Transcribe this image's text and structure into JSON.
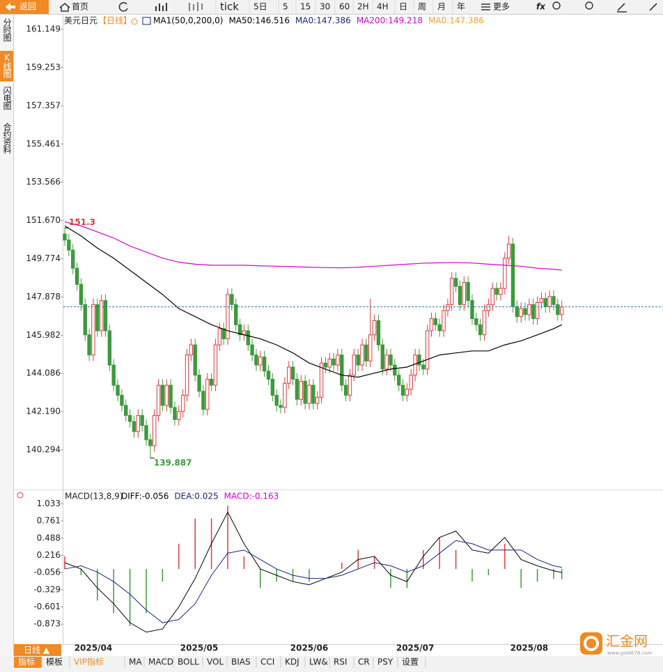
{
  "toolbar": {
    "back": "返回",
    "home": "首页",
    "items": [
      "tick",
      "5日",
      "5",
      "15",
      "30",
      "60",
      "2H",
      "4H",
      "日",
      "周",
      "月",
      "年"
    ],
    "more": "更多",
    "fx": "fx"
  },
  "side_tabs": [
    "分时图",
    "K线图",
    "闪电图",
    "合约资料"
  ],
  "chart_data": {
    "type": "candlestick",
    "title": "美元日元",
    "period": "【日线】",
    "legend": [
      {
        "text": "MA1(50,0,200,0)",
        "color": "#000000"
      },
      {
        "text": "MA50:146.516",
        "color": "#000000"
      },
      {
        "text": "MA0:147.386",
        "color": "#1a237e"
      },
      {
        "text": "MA200:149.218",
        "color": "#d400d4"
      },
      {
        "text": "MA0:147.386",
        "color": "#f0a030"
      }
    ],
    "up_color": "#e0393e",
    "down_color": "#3c9a3c",
    "candles": [
      [
        151.0,
        151.3,
        150.4,
        150.7
      ],
      [
        150.7,
        151.0,
        149.9,
        150.2
      ],
      [
        150.2,
        150.5,
        149.0,
        149.3
      ],
      [
        149.3,
        149.6,
        148.2,
        148.5
      ],
      [
        148.5,
        148.8,
        147.2,
        147.5
      ],
      [
        147.5,
        147.8,
        145.7,
        146.0
      ],
      [
        146.0,
        146.3,
        144.7,
        145.0
      ],
      [
        145.0,
        147.8,
        144.7,
        147.5
      ],
      [
        147.5,
        147.8,
        145.9,
        146.2
      ],
      [
        146.2,
        148.0,
        145.9,
        147.7
      ],
      [
        147.7,
        148.0,
        145.9,
        146.2
      ],
      [
        146.2,
        146.5,
        144.2,
        144.5
      ],
      [
        144.5,
        144.8,
        143.2,
        143.5
      ],
      [
        143.5,
        143.8,
        142.7,
        143.0
      ],
      [
        143.0,
        143.3,
        142.2,
        142.5
      ],
      [
        142.5,
        142.8,
        141.7,
        142.0
      ],
      [
        142.0,
        142.3,
        141.4,
        141.7
      ],
      [
        141.7,
        142.0,
        140.9,
        141.2
      ],
      [
        141.2,
        142.3,
        140.9,
        142.0
      ],
      [
        142.0,
        142.3,
        141.2,
        141.5
      ],
      [
        141.5,
        141.8,
        140.5,
        140.8
      ],
      [
        140.8,
        141.1,
        139.887,
        140.5
      ],
      [
        140.5,
        142.3,
        140.2,
        142.0
      ],
      [
        142.0,
        143.8,
        141.7,
        143.5
      ],
      [
        143.5,
        143.8,
        142.2,
        142.5
      ],
      [
        142.5,
        143.8,
        142.2,
        143.5
      ],
      [
        143.5,
        143.8,
        142.1,
        142.4
      ],
      [
        142.4,
        142.7,
        141.5,
        141.8
      ],
      [
        141.8,
        142.5,
        141.5,
        142.2
      ],
      [
        142.2,
        143.3,
        141.9,
        143.0
      ],
      [
        143.0,
        145.3,
        142.7,
        145.0
      ],
      [
        145.0,
        145.8,
        144.7,
        145.5
      ],
      [
        145.5,
        145.8,
        143.7,
        144.0
      ],
      [
        144.0,
        144.3,
        142.9,
        143.2
      ],
      [
        143.2,
        143.5,
        142.0,
        142.3
      ],
      [
        142.3,
        144.1,
        142.0,
        143.8
      ],
      [
        143.8,
        144.1,
        143.2,
        143.5
      ],
      [
        143.5,
        145.8,
        143.2,
        145.5
      ],
      [
        145.5,
        146.6,
        145.2,
        146.3
      ],
      [
        146.3,
        146.6,
        145.5,
        145.8
      ],
      [
        145.8,
        148.3,
        145.5,
        148.0
      ],
      [
        148.0,
        148.3,
        147.2,
        147.5
      ],
      [
        147.5,
        147.8,
        146.2,
        146.5
      ],
      [
        146.5,
        146.8,
        145.7,
        146.0
      ],
      [
        146.0,
        146.5,
        145.7,
        146.2
      ],
      [
        146.2,
        146.5,
        145.2,
        145.5
      ],
      [
        145.5,
        145.8,
        144.7,
        145.0
      ],
      [
        145.0,
        145.3,
        144.2,
        144.5
      ],
      [
        144.5,
        145.2,
        144.2,
        144.9
      ],
      [
        144.9,
        145.2,
        143.9,
        144.2
      ],
      [
        144.2,
        144.5,
        143.5,
        143.8
      ],
      [
        143.8,
        144.1,
        142.7,
        143.0
      ],
      [
        143.0,
        143.3,
        142.2,
        142.5
      ],
      [
        142.5,
        142.8,
        142.1,
        142.4
      ],
      [
        142.4,
        143.9,
        142.1,
        143.6
      ],
      [
        143.6,
        144.7,
        143.3,
        144.4
      ],
      [
        144.4,
        144.7,
        143.5,
        143.8
      ],
      [
        143.8,
        144.1,
        142.5,
        142.8
      ],
      [
        142.8,
        144.0,
        142.5,
        143.7
      ],
      [
        143.7,
        144.0,
        142.3,
        142.6
      ],
      [
        142.6,
        143.8,
        142.3,
        143.5
      ],
      [
        143.5,
        143.8,
        142.3,
        142.6
      ],
      [
        142.6,
        143.2,
        142.3,
        142.9
      ],
      [
        142.9,
        144.9,
        142.6,
        144.6
      ],
      [
        144.6,
        144.9,
        144.1,
        144.4
      ],
      [
        144.4,
        145.1,
        144.1,
        144.8
      ],
      [
        144.8,
        145.1,
        144.2,
        144.5
      ],
      [
        144.5,
        145.3,
        144.2,
        145.0
      ],
      [
        145.0,
        145.3,
        143.2,
        143.5
      ],
      [
        143.5,
        143.8,
        142.7,
        143.0
      ],
      [
        143.0,
        144.3,
        142.7,
        144.0
      ],
      [
        144.0,
        145.3,
        143.7,
        145.0
      ],
      [
        145.0,
        145.3,
        144.2,
        144.5
      ],
      [
        144.5,
        145.8,
        144.2,
        145.5
      ],
      [
        145.5,
        145.8,
        144.4,
        144.7
      ],
      [
        144.7,
        147.8,
        144.4,
        146.0
      ],
      [
        146.0,
        147.0,
        145.7,
        146.7
      ],
      [
        146.7,
        147.0,
        145.2,
        145.5
      ],
      [
        145.5,
        145.8,
        144.0,
        144.3
      ],
      [
        144.3,
        145.3,
        144.0,
        145.0
      ],
      [
        145.0,
        145.3,
        144.2,
        144.5
      ],
      [
        144.5,
        144.8,
        143.7,
        144.0
      ],
      [
        144.0,
        144.3,
        143.2,
        143.5
      ],
      [
        143.5,
        143.8,
        142.7,
        143.0
      ],
      [
        143.0,
        143.6,
        142.7,
        143.3
      ],
      [
        143.3,
        144.3,
        143.0,
        144.0
      ],
      [
        144.0,
        145.3,
        143.7,
        145.0
      ],
      [
        145.0,
        145.3,
        144.2,
        144.5
      ],
      [
        144.5,
        144.8,
        144.0,
        144.3
      ],
      [
        144.3,
        146.5,
        144.0,
        146.2
      ],
      [
        146.2,
        147.1,
        145.9,
        146.8
      ],
      [
        146.8,
        147.1,
        146.2,
        146.5
      ],
      [
        146.5,
        146.8,
        145.9,
        146.2
      ],
      [
        146.2,
        147.5,
        145.9,
        147.2
      ],
      [
        147.2,
        147.8,
        146.9,
        147.5
      ],
      [
        147.5,
        149.1,
        147.2,
        148.8
      ],
      [
        148.8,
        149.1,
        148.1,
        148.4
      ],
      [
        148.4,
        148.7,
        147.2,
        147.5
      ],
      [
        147.5,
        148.9,
        147.2,
        148.6
      ],
      [
        148.6,
        148.9,
        147.4,
        147.7
      ],
      [
        147.7,
        148.0,
        146.5,
        146.8
      ],
      [
        146.8,
        147.1,
        146.2,
        146.5
      ],
      [
        146.5,
        146.8,
        145.7,
        146.0
      ],
      [
        146.0,
        147.5,
        145.7,
        147.2
      ],
      [
        147.2,
        147.8,
        146.9,
        147.5
      ],
      [
        147.5,
        148.6,
        147.2,
        148.3
      ],
      [
        148.3,
        148.6,
        147.7,
        148.0
      ],
      [
        148.0,
        148.6,
        147.7,
        148.3
      ],
      [
        148.3,
        150.1,
        148.0,
        149.8
      ],
      [
        149.8,
        150.914,
        149.5,
        150.5
      ],
      [
        150.5,
        150.8,
        147.1,
        147.4
      ],
      [
        147.4,
        147.7,
        146.6,
        146.9
      ],
      [
        146.9,
        147.6,
        146.6,
        147.3
      ],
      [
        147.3,
        147.6,
        146.7,
        147.0
      ],
      [
        147.0,
        147.8,
        146.7,
        147.5
      ],
      [
        147.5,
        147.8,
        146.5,
        146.8
      ],
      [
        146.8,
        147.9,
        146.5,
        147.6
      ],
      [
        147.6,
        148.1,
        147.3,
        147.8
      ],
      [
        147.8,
        148.1,
        147.1,
        147.4
      ],
      [
        147.4,
        148.2,
        147.1,
        147.9
      ],
      [
        147.9,
        148.2,
        147.2,
        147.5
      ],
      [
        147.5,
        147.8,
        146.7,
        147.0
      ],
      [
        147.0,
        147.7,
        146.7,
        147.386
      ]
    ],
    "ylim": [
      138.43,
      161.91
    ],
    "yticks": [
      161.149,
      159.253,
      157.357,
      155.461,
      153.566,
      {
        "value": 151.67,
        "label": "151.670"
      },
      149.774,
      147.878,
      145.982,
      144.086,
      {
        "value": 142.19,
        "label": "142.190"
      },
      140.294
    ],
    "sample_x": [
      0,
      4,
      8,
      12,
      16,
      20,
      24,
      28,
      32,
      36,
      40,
      44,
      48,
      52,
      56,
      60,
      64,
      68,
      72,
      76,
      80,
      84,
      88,
      92,
      96,
      100,
      104,
      108,
      112,
      116,
      120,
      122
    ],
    "ma": [
      {
        "color": "#000000",
        "values": [
          151.4,
          150.9,
          150.3,
          149.8,
          149.2,
          148.6,
          148.0,
          147.3,
          146.9,
          146.5,
          146.2,
          146.0,
          145.8,
          145.5,
          145.1,
          144.6,
          144.3,
          144.0,
          143.9,
          144.1,
          144.3,
          144.4,
          144.7,
          145.0,
          145.1,
          145.2,
          145.2,
          145.5,
          145.7,
          146.0,
          146.3,
          146.5
        ]
      },
      {
        "color": "#d400d4",
        "values": [
          151.6,
          151.4,
          151.1,
          150.8,
          150.4,
          150.1,
          149.8,
          149.6,
          149.5,
          149.45,
          149.45,
          149.45,
          149.42,
          149.4,
          149.38,
          149.35,
          149.33,
          149.32,
          149.35,
          149.4,
          149.45,
          149.5,
          149.55,
          149.57,
          149.58,
          149.56,
          149.5,
          149.45,
          149.4,
          149.3,
          149.25,
          149.2
        ]
      }
    ],
    "months": [
      {
        "label": "2025/04",
        "index": 7
      },
      {
        "label": "2025/05",
        "index": 33
      },
      {
        "label": "2025/06",
        "index": 60
      },
      {
        "label": "2025/07",
        "index": 86
      },
      {
        "label": "2025/08",
        "index": 114
      }
    ],
    "macd": {
      "type": "macd",
      "title": "MACD(13,8,9)",
      "labels": [
        {
          "text": "DIFF:-0.056",
          "color": "#000000"
        },
        {
          "text": "DEA:0.025",
          "color": "#1a237e"
        },
        {
          "text": "MACD:-0.163",
          "color": "#d400d4"
        }
      ],
      "diff": [
        0.1,
        0.0,
        -0.3,
        -0.55,
        -0.85,
        -1.0,
        -0.95,
        -0.6,
        -0.15,
        0.4,
        0.9,
        0.4,
        0.0,
        -0.1,
        -0.2,
        -0.25,
        -0.15,
        -0.05,
        0.15,
        0.2,
        -0.1,
        -0.2,
        0.2,
        0.5,
        0.6,
        0.3,
        0.25,
        0.5,
        0.15,
        0.05,
        -0.03,
        -0.056
      ],
      "dea": [
        0.0,
        0.05,
        -0.05,
        -0.2,
        -0.4,
        -0.65,
        -0.85,
        -0.8,
        -0.55,
        -0.1,
        0.25,
        0.3,
        0.15,
        0.0,
        -0.1,
        -0.15,
        -0.15,
        -0.1,
        0.0,
        0.1,
        0.05,
        -0.05,
        0.05,
        0.25,
        0.45,
        0.4,
        0.3,
        0.3,
        0.3,
        0.15,
        0.05,
        0.025
      ],
      "hist": [
        0.2,
        -0.1,
        -0.5,
        -0.7,
        -0.9,
        -0.7,
        -0.2,
        0.4,
        0.8,
        0.8,
        1.0,
        0.2,
        -0.3,
        -0.2,
        -0.2,
        -0.2,
        0,
        0.1,
        0.3,
        0.2,
        -0.3,
        -0.3,
        0.3,
        0.5,
        0.3,
        -0.2,
        -0.1,
        0.4,
        -0.3,
        -0.2,
        -0.16,
        -0.163
      ],
      "ylim": [
        -1.19,
        1.07
      ],
      "yticks": [
        1.033,
        0.761,
        0.488,
        0.216,
        -0.056,
        -0.329,
        -0.601,
        -0.873
      ]
    }
  },
  "bottom": {
    "period": "日线 ▲",
    "tabs": [
      "指标",
      "模板",
      "VIP指标",
      "MA",
      "MACD",
      "BOLL",
      "VOL",
      "BIAS",
      "CCI",
      "KDJ",
      "LW&",
      "RSI",
      "CR",
      "PSY",
      "设置"
    ]
  },
  "logo": {
    "text": "汇金网",
    "url": "www.gold678.com"
  }
}
